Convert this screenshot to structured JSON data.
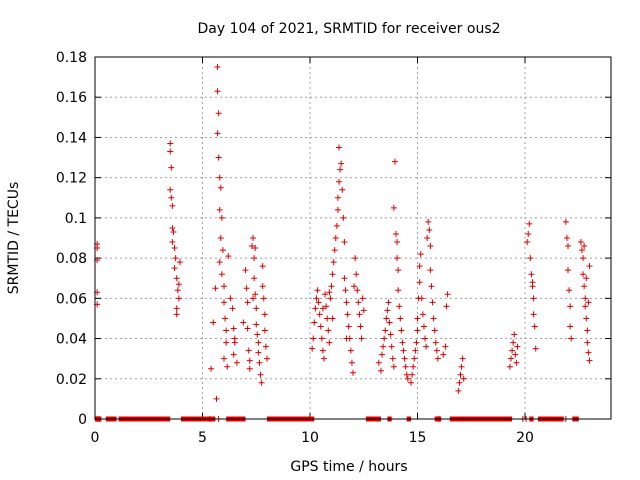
{
  "chart_data": {
    "type": "scatter",
    "title": "Day 104 of 2021, SRMTID for receiver ous2",
    "xlabel": "GPS time / hours",
    "ylabel": "SRMTID / TECUs",
    "xlim": [
      0,
      24
    ],
    "ylim": [
      0,
      0.18
    ],
    "x_ticks": [
      0,
      5,
      10,
      15,
      20
    ],
    "x_tick_labels": [
      "0",
      "5",
      "10",
      "15",
      "20"
    ],
    "y_ticks": [
      0,
      0.02,
      0.04,
      0.06,
      0.08,
      0.1,
      0.12,
      0.14,
      0.16,
      0.18
    ],
    "y_tick_labels": [
      "0",
      "0.02",
      "0.04",
      "0.06",
      "0.08",
      "0.1",
      "0.12",
      "0.14",
      "0.16",
      "0.18"
    ],
    "grid": true,
    "marker": "+",
    "series_color": "#e00000",
    "series": [
      {
        "name": "SRMTID",
        "points": [
          [
            0.1,
            0.087
          ],
          [
            0.1,
            0.085
          ],
          [
            0.1,
            0.079
          ],
          [
            0.1,
            0.063
          ],
          [
            0.1,
            0.057
          ],
          [
            3.5,
            0.137
          ],
          [
            3.5,
            0.133
          ],
          [
            3.55,
            0.125
          ],
          [
            3.5,
            0.114
          ],
          [
            3.55,
            0.11
          ],
          [
            3.6,
            0.106
          ],
          [
            3.6,
            0.095
          ],
          [
            3.65,
            0.093
          ],
          [
            3.7,
            0.085
          ],
          [
            3.75,
            0.08
          ],
          [
            3.7,
            0.075
          ],
          [
            3.8,
            0.07
          ],
          [
            3.85,
            0.064
          ],
          [
            3.9,
            0.06
          ],
          [
            3.8,
            0.055
          ],
          [
            3.8,
            0.052
          ],
          [
            3.9,
            0.067
          ],
          [
            3.95,
            0.078
          ],
          [
            3.6,
            0.088
          ],
          [
            5.4,
            0.025
          ],
          [
            5.5,
            0.048
          ],
          [
            5.6,
            0.065
          ],
          [
            5.65,
            0.01
          ],
          [
            5.7,
            0.175
          ],
          [
            5.7,
            0.163
          ],
          [
            5.75,
            0.152
          ],
          [
            5.7,
            0.142
          ],
          [
            5.75,
            0.13
          ],
          [
            5.8,
            0.12
          ],
          [
            5.85,
            0.115
          ],
          [
            5.8,
            0.104
          ],
          [
            5.9,
            0.1
          ],
          [
            5.85,
            0.09
          ],
          [
            5.95,
            0.084
          ],
          [
            5.8,
            0.078
          ],
          [
            5.9,
            0.072
          ],
          [
            6.0,
            0.066
          ],
          [
            6.0,
            0.058
          ],
          [
            6.05,
            0.05
          ],
          [
            6.1,
            0.044
          ],
          [
            6.1,
            0.038
          ],
          [
            6.0,
            0.03
          ],
          [
            6.15,
            0.026
          ],
          [
            6.2,
            0.081
          ],
          [
            6.3,
            0.06
          ],
          [
            6.4,
            0.055
          ],
          [
            6.45,
            0.045
          ],
          [
            6.5,
            0.038
          ],
          [
            6.45,
            0.032
          ],
          [
            6.6,
            0.028
          ],
          [
            6.5,
            0.04
          ],
          [
            6.9,
            0.048
          ],
          [
            7.0,
            0.074
          ],
          [
            7.05,
            0.065
          ],
          [
            7.1,
            0.058
          ],
          [
            7.1,
            0.045
          ],
          [
            7.15,
            0.034
          ],
          [
            7.2,
            0.029
          ],
          [
            7.2,
            0.025
          ],
          [
            7.3,
            0.086
          ],
          [
            7.35,
            0.09
          ],
          [
            7.4,
            0.08
          ],
          [
            7.4,
            0.07
          ],
          [
            7.45,
            0.062
          ],
          [
            7.5,
            0.055
          ],
          [
            7.5,
            0.047
          ],
          [
            7.55,
            0.042
          ],
          [
            7.6,
            0.038
          ],
          [
            7.6,
            0.033
          ],
          [
            7.65,
            0.028
          ],
          [
            7.7,
            0.022
          ],
          [
            7.75,
            0.018
          ],
          [
            7.8,
            0.076
          ],
          [
            7.8,
            0.066
          ],
          [
            7.85,
            0.06
          ],
          [
            7.9,
            0.052
          ],
          [
            7.9,
            0.044
          ],
          [
            7.95,
            0.036
          ],
          [
            8.0,
            0.03
          ],
          [
            7.45,
            0.085
          ],
          [
            7.35,
            0.06
          ],
          [
            10.1,
            0.035
          ],
          [
            10.15,
            0.04
          ],
          [
            10.2,
            0.048
          ],
          [
            10.25,
            0.055
          ],
          [
            10.3,
            0.06
          ],
          [
            10.35,
            0.064
          ],
          [
            10.4,
            0.058
          ],
          [
            10.45,
            0.052
          ],
          [
            10.5,
            0.046
          ],
          [
            10.55,
            0.04
          ],
          [
            10.6,
            0.034
          ],
          [
            10.65,
            0.03
          ],
          [
            10.7,
            0.062
          ],
          [
            10.75,
            0.056
          ],
          [
            10.8,
            0.05
          ],
          [
            10.85,
            0.044
          ],
          [
            10.9,
            0.038
          ],
          [
            10.95,
            0.06
          ],
          [
            11.0,
            0.066
          ],
          [
            11.05,
            0.072
          ],
          [
            11.1,
            0.078
          ],
          [
            11.15,
            0.084
          ],
          [
            11.2,
            0.09
          ],
          [
            11.25,
            0.096
          ],
          [
            11.3,
            0.104
          ],
          [
            11.3,
            0.11
          ],
          [
            11.35,
            0.118
          ],
          [
            11.4,
            0.124
          ],
          [
            11.45,
            0.127
          ],
          [
            11.35,
            0.135
          ],
          [
            11.5,
            0.114
          ],
          [
            11.55,
            0.1
          ],
          [
            11.6,
            0.088
          ],
          [
            11.6,
            0.07
          ],
          [
            11.65,
            0.064
          ],
          [
            11.7,
            0.058
          ],
          [
            11.75,
            0.052
          ],
          [
            11.8,
            0.046
          ],
          [
            11.85,
            0.04
          ],
          [
            11.9,
            0.034
          ],
          [
            11.95,
            0.028
          ],
          [
            12.0,
            0.023
          ],
          [
            12.05,
            0.066
          ],
          [
            12.1,
            0.08
          ],
          [
            12.15,
            0.072
          ],
          [
            12.2,
            0.064
          ],
          [
            12.25,
            0.058
          ],
          [
            12.3,
            0.052
          ],
          [
            12.35,
            0.046
          ],
          [
            12.4,
            0.04
          ],
          [
            12.45,
            0.06
          ],
          [
            12.5,
            0.054
          ],
          [
            11.05,
            0.05
          ],
          [
            10.6,
            0.055
          ],
          [
            10.9,
            0.063
          ],
          [
            11.7,
            0.04
          ],
          [
            13.2,
            0.028
          ],
          [
            13.3,
            0.024
          ],
          [
            13.35,
            0.032
          ],
          [
            13.4,
            0.036
          ],
          [
            13.45,
            0.04
          ],
          [
            13.5,
            0.044
          ],
          [
            13.55,
            0.05
          ],
          [
            13.6,
            0.054
          ],
          [
            13.65,
            0.058
          ],
          [
            13.7,
            0.048
          ],
          [
            13.75,
            0.042
          ],
          [
            13.8,
            0.036
          ],
          [
            13.85,
            0.03
          ],
          [
            13.9,
            0.026
          ],
          [
            13.95,
            0.128
          ],
          [
            13.9,
            0.105
          ],
          [
            14.0,
            0.092
          ],
          [
            14.05,
            0.088
          ],
          [
            14.05,
            0.08
          ],
          [
            14.1,
            0.074
          ],
          [
            14.1,
            0.064
          ],
          [
            14.15,
            0.056
          ],
          [
            14.2,
            0.05
          ],
          [
            14.25,
            0.044
          ],
          [
            14.3,
            0.038
          ],
          [
            14.35,
            0.034
          ],
          [
            14.4,
            0.03
          ],
          [
            14.45,
            0.026
          ],
          [
            14.5,
            0.022
          ],
          [
            14.55,
            0.02
          ],
          [
            14.7,
            0.018
          ],
          [
            14.75,
            0.022
          ],
          [
            14.8,
            0.026
          ],
          [
            14.85,
            0.03
          ],
          [
            14.9,
            0.034
          ],
          [
            14.95,
            0.038
          ],
          [
            15.0,
            0.044
          ],
          [
            15.0,
            0.05
          ],
          [
            15.05,
            0.06
          ],
          [
            15.1,
            0.068
          ],
          [
            15.1,
            0.076
          ],
          [
            15.15,
            0.082
          ],
          [
            15.2,
            0.06
          ],
          [
            15.25,
            0.052
          ],
          [
            15.3,
            0.046
          ],
          [
            15.35,
            0.04
          ],
          [
            15.4,
            0.036
          ],
          [
            15.45,
            0.09
          ],
          [
            15.5,
            0.098
          ],
          [
            15.55,
            0.094
          ],
          [
            15.6,
            0.086
          ],
          [
            15.6,
            0.074
          ],
          [
            15.65,
            0.066
          ],
          [
            15.7,
            0.058
          ],
          [
            15.75,
            0.05
          ],
          [
            15.8,
            0.044
          ],
          [
            15.85,
            0.038
          ],
          [
            15.9,
            0.034
          ],
          [
            15.95,
            0.03
          ],
          [
            16.2,
            0.032
          ],
          [
            16.3,
            0.036
          ],
          [
            16.35,
            0.056
          ],
          [
            16.4,
            0.062
          ],
          [
            16.9,
            0.014
          ],
          [
            16.95,
            0.018
          ],
          [
            17.0,
            0.022
          ],
          [
            17.05,
            0.026
          ],
          [
            17.1,
            0.03
          ],
          [
            17.15,
            0.02
          ],
          [
            19.3,
            0.026
          ],
          [
            19.35,
            0.03
          ],
          [
            19.4,
            0.034
          ],
          [
            19.45,
            0.038
          ],
          [
            19.5,
            0.042
          ],
          [
            19.55,
            0.032
          ],
          [
            19.6,
            0.028
          ],
          [
            19.65,
            0.036
          ],
          [
            20.1,
            0.088
          ],
          [
            20.15,
            0.092
          ],
          [
            20.2,
            0.097
          ],
          [
            20.25,
            0.08
          ],
          [
            20.3,
            0.072
          ],
          [
            20.35,
            0.066
          ],
          [
            20.4,
            0.06
          ],
          [
            20.4,
            0.052
          ],
          [
            20.45,
            0.046
          ],
          [
            20.5,
            0.035
          ],
          [
            20.35,
            0.068
          ],
          [
            21.9,
            0.098
          ],
          [
            21.95,
            0.09
          ],
          [
            22.0,
            0.086
          ],
          [
            22.0,
            0.074
          ],
          [
            22.05,
            0.064
          ],
          [
            22.1,
            0.056
          ],
          [
            22.1,
            0.046
          ],
          [
            22.15,
            0.04
          ],
          [
            22.6,
            0.088
          ],
          [
            22.65,
            0.084
          ],
          [
            22.7,
            0.08
          ],
          [
            22.7,
            0.072
          ],
          [
            22.75,
            0.066
          ],
          [
            22.8,
            0.06
          ],
          [
            22.8,
            0.056
          ],
          [
            22.85,
            0.05
          ],
          [
            22.9,
            0.044
          ],
          [
            22.9,
            0.038
          ],
          [
            22.95,
            0.033
          ],
          [
            23.0,
            0.029
          ],
          [
            22.75,
            0.086
          ],
          [
            23.0,
            0.076
          ],
          [
            22.85,
            0.07
          ],
          [
            22.95,
            0.058
          ]
        ]
      }
    ],
    "zero_segments": [
      [
        0,
        0.3
      ],
      [
        0.5,
        1.0
      ],
      [
        1.1,
        3.5
      ],
      [
        4.0,
        5.2
      ],
      [
        5.2,
        5.6
      ],
      [
        6.1,
        7.0
      ],
      [
        8.0,
        10.2
      ],
      [
        12.6,
        13.3
      ],
      [
        13.6,
        13.8
      ],
      [
        14.5,
        14.7
      ],
      [
        15.8,
        16.1
      ],
      [
        16.5,
        19.4
      ],
      [
        20.2,
        20.4
      ],
      [
        20.6,
        21.8
      ],
      [
        22.2,
        22.5
      ]
    ],
    "zero_markers": [
      [
        0.1,
        0
      ],
      [
        0.2,
        0
      ],
      [
        5.35,
        0
      ],
      [
        5.75,
        0
      ],
      [
        16.0,
        0
      ],
      [
        19.9,
        0
      ],
      [
        20.05,
        0
      ],
      [
        21.9,
        0
      ]
    ]
  }
}
